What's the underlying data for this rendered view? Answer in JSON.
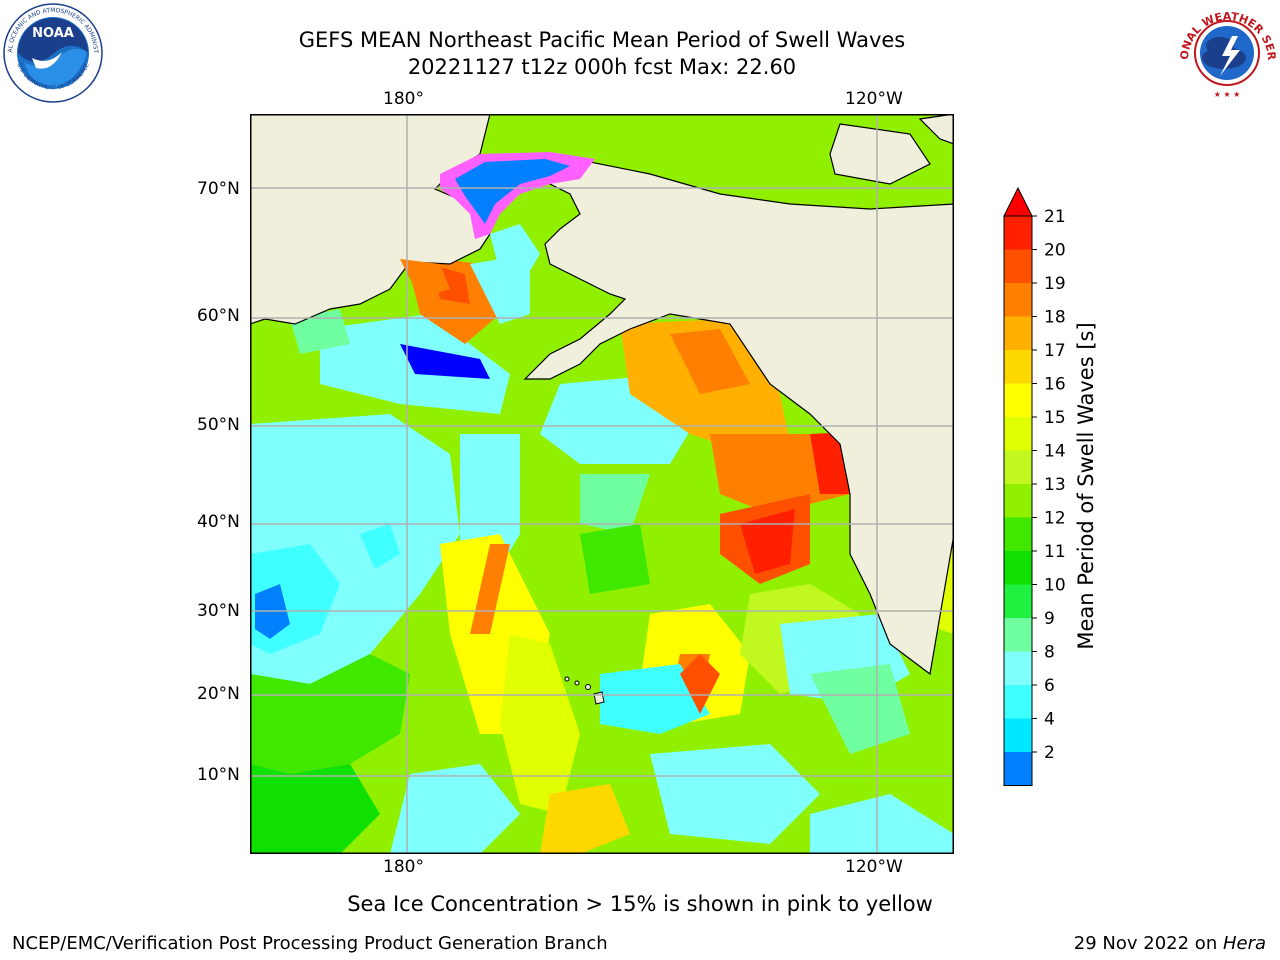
{
  "title": {
    "line1": "GEFS MEAN Northeast Pacific Mean Period of Swell Waves",
    "line2": "20221127 t12z 000h fcst   Max: 22.60"
  },
  "logos": {
    "noaa_text": "NOAA",
    "noaa_ring_top": "NATIONAL OCEANIC AND ATMOSPHERIC ADMINISTRATION",
    "noaa_ring_bottom": "U.S. DEPARTMENT OF COMMERCE",
    "nws_ring_top": "NATIONAL WEATHER SERVICE"
  },
  "axes": {
    "lon_top": [
      "180°",
      "120°W"
    ],
    "lon_bottom": [
      "180°",
      "120°W"
    ],
    "lat": [
      "70°N",
      "60°N",
      "50°N",
      "40°N",
      "30°N",
      "20°N",
      "10°N"
    ]
  },
  "colorbar": {
    "label": "Mean Period of Swell Waves [s]",
    "ticks": [
      "21",
      "20",
      "19",
      "18",
      "17",
      "16",
      "15",
      "14",
      "13",
      "12",
      "11",
      "10",
      "9",
      "8",
      "6",
      "4",
      "2"
    ],
    "colors": [
      "#ff2000",
      "#ff5000",
      "#ff8000",
      "#ffb000",
      "#ffd800",
      "#ffff00",
      "#e0ff00",
      "#c0f820",
      "#90f000",
      "#40e800",
      "#10e000",
      "#20f040",
      "#70ffa0",
      "#80ffff",
      "#40ffff",
      "#00e8ff",
      "#0080ff"
    ],
    "over_color": "#ff0000",
    "under_color": "#0000ff"
  },
  "map": {
    "land_color": "#efefdc",
    "ocean_base_color": "#90f000",
    "grid_color": "#b0b0b0"
  },
  "footer": {
    "caption": "Sea Ice Concentration > 15% is shown in pink to yellow",
    "credit": "NCEP/EMC/Verification Post Processing Product Generation Branch",
    "date_prefix": "29 Nov 2022 on ",
    "host": "Hera"
  }
}
